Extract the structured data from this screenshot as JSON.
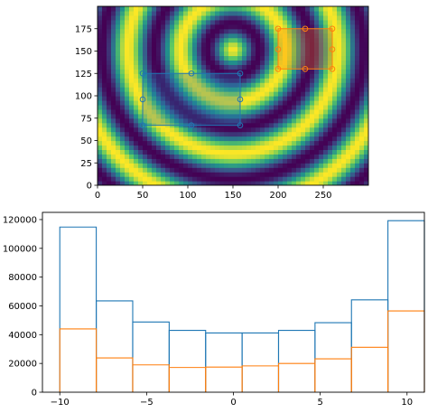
{
  "chart_data": [
    {
      "type": "heatmap",
      "title": "",
      "xlabel": "",
      "ylabel": "",
      "xlim": [
        0,
        300
      ],
      "ylim": [
        0,
        200
      ],
      "x_ticks": [
        0,
        50,
        100,
        150,
        200,
        250
      ],
      "y_ticks": [
        0,
        25,
        50,
        75,
        100,
        125,
        150,
        175
      ],
      "colormap": "viridis",
      "pattern": "concentric rings centered near (150, 150)",
      "ring_center": [
        150,
        152
      ],
      "ring_period": 58,
      "selections": [
        {
          "name": "",
          "color": "#1f77b4",
          "x_range": [
            50,
            158
          ],
          "y_range": [
            67,
            125
          ],
          "handles": [
            [
              50,
              125
            ],
            [
              104,
              125
            ],
            [
              158,
              125
            ],
            [
              158,
              96
            ],
            [
              158,
              67
            ],
            [
              104,
              67
            ],
            [
              50,
              67
            ],
            [
              50,
              96
            ]
          ]
        },
        {
          "name": "",
          "color": "#ff7f0e",
          "x_range": [
            200,
            260
          ],
          "y_range": [
            130,
            175
          ],
          "handles": [
            [
              200,
              175
            ],
            [
              230,
              175
            ],
            [
              260,
              175
            ],
            [
              260,
              152
            ],
            [
              260,
              130
            ],
            [
              230,
              130
            ],
            [
              200,
              130
            ],
            [
              200,
              152
            ]
          ]
        }
      ]
    },
    {
      "type": "bar",
      "title": "",
      "xlabel": "",
      "ylabel": "",
      "histtype": "step",
      "xlim": [
        -11,
        11
      ],
      "ylim": [
        0,
        125000
      ],
      "x_ticks": [
        -10,
        -5,
        0,
        5,
        10
      ],
      "y_ticks": [
        0,
        20000,
        40000,
        60000,
        80000,
        100000,
        120000
      ],
      "bin_edges": [
        -10,
        -7.9,
        -5.8,
        -3.7,
        -1.6,
        0.5,
        2.6,
        4.7,
        6.8,
        8.9,
        11
      ],
      "series": [
        {
          "color": "#1f77b4",
          "values": [
            114800,
            63500,
            48800,
            43000,
            41200,
            41200,
            43000,
            48300,
            64200,
            119200
          ]
        },
        {
          "color": "#ff7f0e",
          "values": [
            44000,
            23800,
            19000,
            17200,
            17500,
            18300,
            20000,
            23200,
            31200,
            56500
          ]
        }
      ]
    }
  ]
}
